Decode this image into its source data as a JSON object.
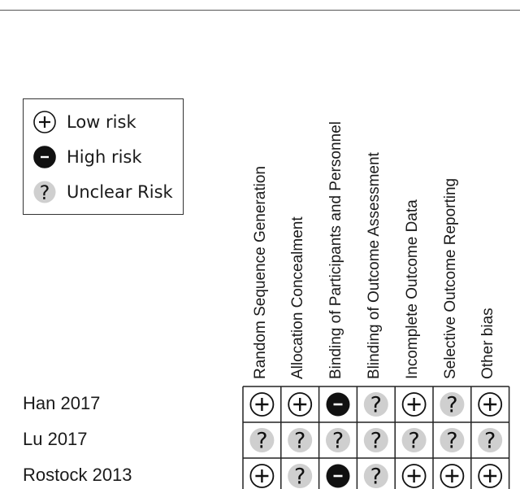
{
  "legend": {
    "items": [
      {
        "key": "low",
        "label": "Low risk",
        "icon": "plus-circle-icon"
      },
      {
        "key": "high",
        "label": "High risk",
        "icon": "minus-filled-circle-icon"
      },
      {
        "key": "unclear",
        "label": "Unclear Risk",
        "icon": "question-circle-icon"
      }
    ]
  },
  "chart_data": {
    "type": "table",
    "columns": [
      "Random Sequence Generation",
      "Allocation Concealment",
      "Binding of Participants and Personnel",
      "Blinding of Outcome Assessment",
      "Incomplete Outcome Data",
      "Selective Outcome Reporting",
      "Other bias"
    ],
    "rows": [
      {
        "study": "Han 2017",
        "ratings": [
          "low",
          "low",
          "high",
          "unclear",
          "low",
          "unclear",
          "low"
        ]
      },
      {
        "study": "Lu 2017",
        "ratings": [
          "unclear",
          "unclear",
          "unclear",
          "unclear",
          "unclear",
          "unclear",
          "unclear"
        ]
      },
      {
        "study": "Rostock 2013",
        "ratings": [
          "low",
          "unclear",
          "high",
          "unclear",
          "low",
          "low",
          "low"
        ]
      }
    ]
  },
  "colors": {
    "low_fill": "#ffffff",
    "high_fill": "#111111",
    "unclear_fill": "#cfcfcf",
    "grid_line": "#222222"
  }
}
